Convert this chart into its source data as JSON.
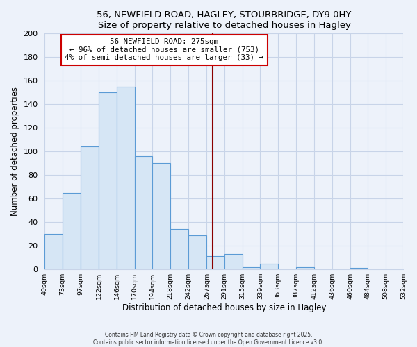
{
  "title": "56, NEWFIELD ROAD, HAGLEY, STOURBRIDGE, DY9 0HY",
  "subtitle": "Size of property relative to detached houses in Hagley",
  "xlabel": "Distribution of detached houses by size in Hagley",
  "ylabel": "Number of detached properties",
  "bins": [
    49,
    73,
    97,
    122,
    146,
    170,
    194,
    218,
    242,
    267,
    291,
    315,
    339,
    363,
    387,
    412,
    436,
    460,
    484,
    508,
    532
  ],
  "counts": [
    30,
    65,
    104,
    150,
    155,
    96,
    90,
    34,
    29,
    11,
    13,
    2,
    5,
    0,
    2,
    0,
    0,
    1,
    0,
    0
  ],
  "bar_color": "#d6e6f5",
  "bar_edge_color": "#5b9bd5",
  "vline_x": 275,
  "vline_color": "#8b0000",
  "annotation_title": "56 NEWFIELD ROAD: 275sqm",
  "annotation_line1": "← 96% of detached houses are smaller (753)",
  "annotation_line2": "4% of semi-detached houses are larger (33) →",
  "annotation_box_facecolor": "white",
  "annotation_box_edgecolor": "#cc0000",
  "ylim": [
    0,
    200
  ],
  "yticks": [
    0,
    20,
    40,
    60,
    80,
    100,
    120,
    140,
    160,
    180,
    200
  ],
  "tick_labels": [
    "49sqm",
    "73sqm",
    "97sqm",
    "122sqm",
    "146sqm",
    "170sqm",
    "194sqm",
    "218sqm",
    "242sqm",
    "267sqm",
    "291sqm",
    "315sqm",
    "339sqm",
    "363sqm",
    "387sqm",
    "412sqm",
    "436sqm",
    "460sqm",
    "484sqm",
    "508sqm",
    "532sqm"
  ],
  "footer_line1": "Contains HM Land Registry data © Crown copyright and database right 2025.",
  "footer_line2": "Contains public sector information licensed under the Open Government Licence v3.0.",
  "background_color": "#edf2fa",
  "grid_color": "#c8d4e8"
}
